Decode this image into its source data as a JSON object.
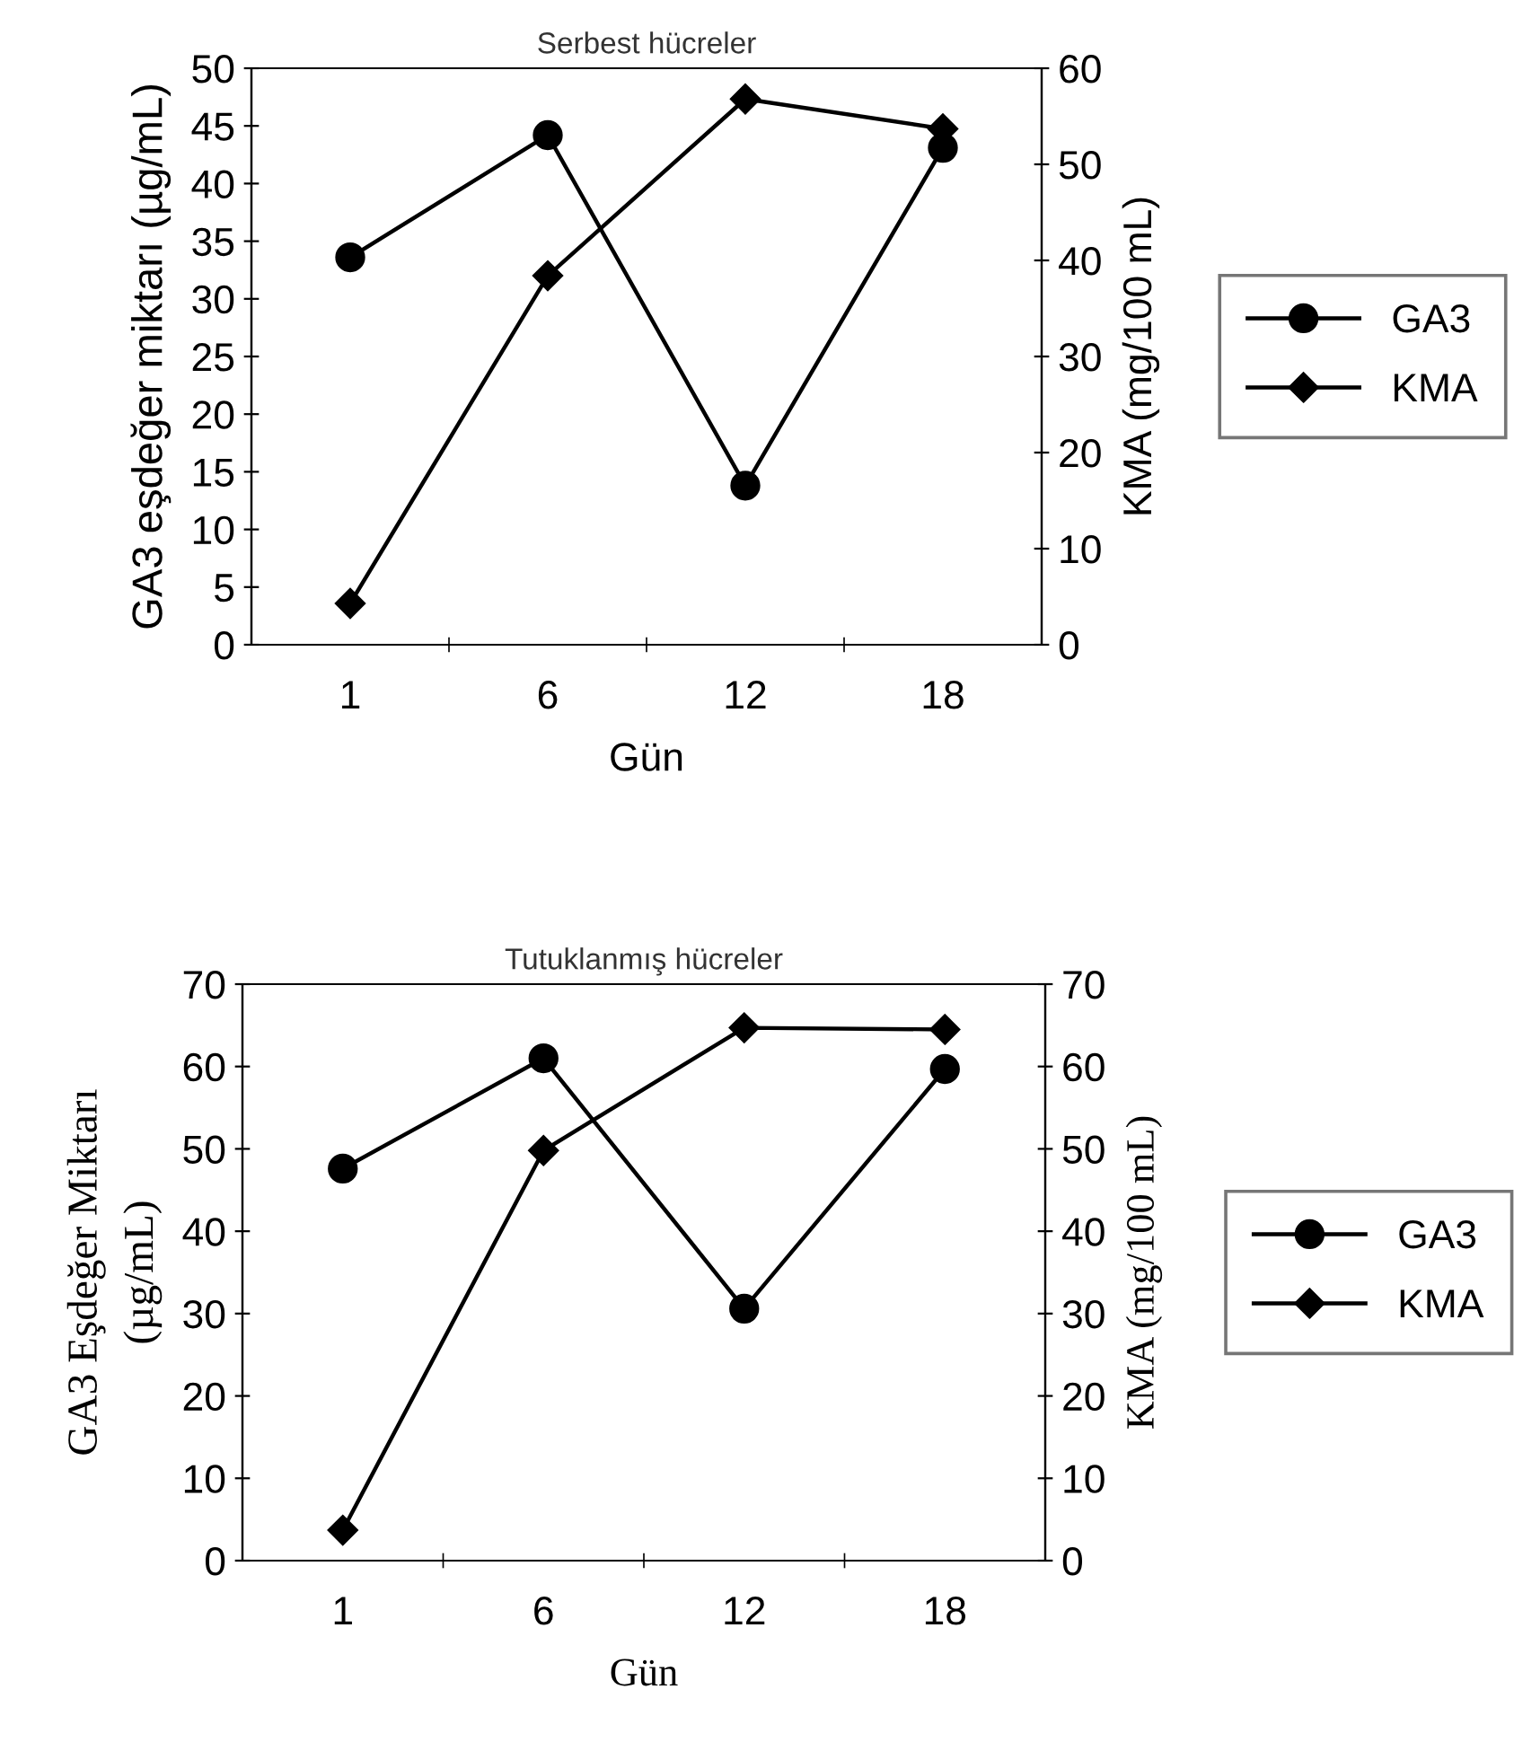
{
  "chart_data": [
    {
      "type": "line",
      "title": "Serbest hücreler",
      "xlabel": "Gün",
      "ylabel": "GA3 eşdeğer miktarı (µg/mL)",
      "y2label": "KMA (mg/100 mL)",
      "categories": [
        "1",
        "6",
        "12",
        "18"
      ],
      "series": [
        {
          "name": "GA3",
          "color": "#000000",
          "marker": "circle",
          "values": [
            33.6,
            44.2,
            13.8,
            43.1
          ]
        },
        {
          "name": "KMA",
          "color": "#000000",
          "marker": "diamond",
          "axis": "y2",
          "values": [
            4.3,
            38.4,
            56.8,
            53.7
          ]
        }
      ],
      "ylim": [
        0,
        50
      ],
      "yticks": [
        0,
        5,
        10,
        15,
        20,
        25,
        30,
        35,
        40,
        45,
        50
      ],
      "y2lim": [
        0,
        60
      ],
      "y2ticks": [
        0,
        10,
        20,
        30,
        40,
        50,
        60
      ],
      "legend": "right",
      "grid": false,
      "line_style": "solid"
    },
    {
      "type": "line",
      "title": "Tutuklanmış hücreler",
      "xlabel": "Gün",
      "ylabel": "GA3 Eşdeğer Miktarı\n(µg/mL)",
      "y2label": "KMA (mg/100 mL)",
      "categories": [
        "1",
        "6",
        "12",
        "18"
      ],
      "series": [
        {
          "name": "GA3",
          "color": "#000000",
          "marker": "circle",
          "values": [
            47.6,
            61.0,
            30.6,
            59.7
          ]
        },
        {
          "name": "KMA",
          "color": "#000000",
          "marker": "diamond",
          "axis": "y2",
          "values": [
            3.7,
            49.8,
            64.7,
            64.5
          ]
        }
      ],
      "ylim": [
        0,
        70
      ],
      "yticks": [
        0,
        10,
        20,
        30,
        40,
        50,
        60,
        70
      ],
      "y2lim": [
        0,
        70
      ],
      "y2ticks": [
        0,
        10,
        20,
        30,
        40,
        50,
        60,
        70
      ],
      "legend": "right",
      "grid": false,
      "line_style": "solid"
    }
  ]
}
